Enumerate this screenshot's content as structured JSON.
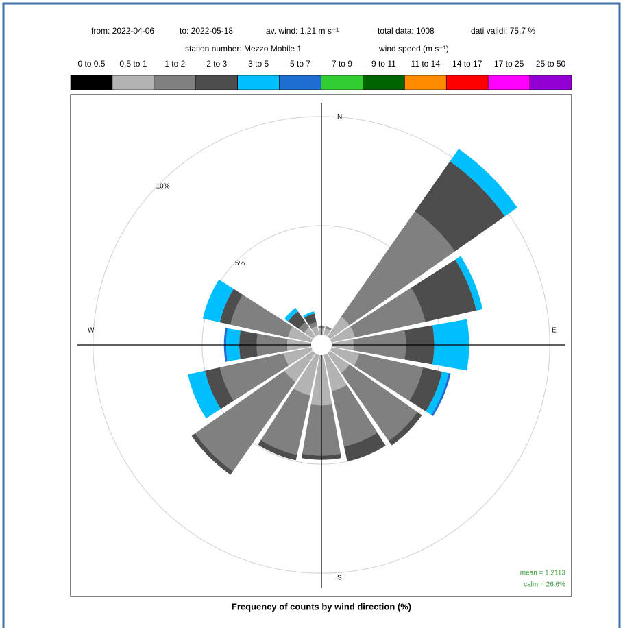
{
  "chart_data": {
    "type": "windrose",
    "header_line1": [
      "from: 2022-04-06",
      "to: 2022-05-18",
      "av. wind:  1.21 m s⁻¹",
      "total data: 1008",
      "dati validi: 75.7 %"
    ],
    "header_line2": [
      "station number:  Mezzo Mobile 1",
      "wind speed (m s⁻¹)"
    ],
    "xlabel": "Frequency of counts by wind direction (%)",
    "compass": [
      "N",
      "E",
      "S",
      "W"
    ],
    "stats": [
      "mean = 1.2113",
      "calm = 26.6%"
    ],
    "x": [
      0,
      22.5,
      45,
      67.5,
      90,
      112.5,
      135,
      157.5,
      180,
      202.5,
      225,
      247.5,
      270,
      292.5,
      315,
      337.5
    ],
    "rlim": [
      0,
      11
    ],
    "rticks": [
      {
        "value": 5,
        "label": "5%"
      },
      {
        "value": 10,
        "label": "10%"
      }
    ],
    "series": [
      {
        "name": "0 to 0.5",
        "color": "#000000",
        "values": [
          0,
          0,
          0,
          0,
          0,
          0,
          0,
          0,
          0,
          0,
          0,
          0,
          0,
          0,
          0,
          0
        ]
      },
      {
        "name": "0.5 to 1",
        "color": "#b3b3b3",
        "values": [
          0.3,
          0.3,
          1.1,
          1.1,
          1.0,
          1.3,
          1.1,
          1.7,
          2.3,
          1.9,
          1.6,
          1.3,
          1.1,
          1.1,
          0.5,
          0.4
        ]
      },
      {
        "name": "1 to 2",
        "color": "#808080",
        "values": [
          0.1,
          0.1,
          5.9,
          3.3,
          2.4,
          3.0,
          3.8,
          2.6,
          2.3,
          2.8,
          5.0,
          3.0,
          1.4,
          2.7,
          0.3,
          0.2
        ]
      },
      {
        "name": "2 to 3",
        "color": "#4d4d4d",
        "values": [
          0,
          0,
          2.8,
          2.4,
          1.3,
          0.9,
          0.25,
          0.7,
          0.2,
          0.25,
          0.2,
          0.7,
          0.8,
          0.5,
          0.6,
          0.4
        ]
      },
      {
        "name": "3 to 5",
        "color": "#00bfff",
        "values": [
          0,
          0,
          0.7,
          0.3,
          1.6,
          0.3,
          0,
          0,
          0,
          0,
          0,
          0.8,
          0.6,
          0.8,
          0.2,
          0.1
        ]
      },
      {
        "name": "5 to 7",
        "color": "#1e6ed2",
        "values": [
          0,
          0,
          0,
          0,
          0,
          0.1,
          0,
          0,
          0,
          0,
          0,
          0,
          0.1,
          0,
          0,
          0
        ]
      },
      {
        "name": "7 to 9",
        "color": "#32cd32",
        "values": [
          0,
          0,
          0,
          0,
          0,
          0,
          0,
          0,
          0,
          0,
          0,
          0,
          0,
          0,
          0,
          0
        ]
      },
      {
        "name": "9 to 11",
        "color": "#006400",
        "values": [
          0,
          0,
          0,
          0,
          0,
          0,
          0,
          0,
          0,
          0,
          0,
          0,
          0,
          0,
          0,
          0
        ]
      },
      {
        "name": "11 to 14",
        "color": "#ff8c00",
        "values": [
          0,
          0,
          0,
          0,
          0,
          0,
          0,
          0,
          0,
          0,
          0,
          0,
          0,
          0,
          0,
          0
        ]
      },
      {
        "name": "14 to 17",
        "color": "#ff0000",
        "values": [
          0,
          0,
          0,
          0,
          0,
          0,
          0,
          0,
          0,
          0,
          0,
          0,
          0,
          0,
          0,
          0
        ]
      },
      {
        "name": "17 to 25",
        "color": "#ff00ff",
        "values": [
          0,
          0,
          0,
          0,
          0,
          0,
          0,
          0,
          0,
          0,
          0,
          0,
          0,
          0,
          0,
          0
        ]
      },
      {
        "name": "25 to 50",
        "color": "#9400d3",
        "values": [
          0,
          0,
          0,
          0,
          0,
          0,
          0,
          0,
          0,
          0,
          0,
          0,
          0,
          0,
          0,
          0
        ]
      }
    ]
  }
}
